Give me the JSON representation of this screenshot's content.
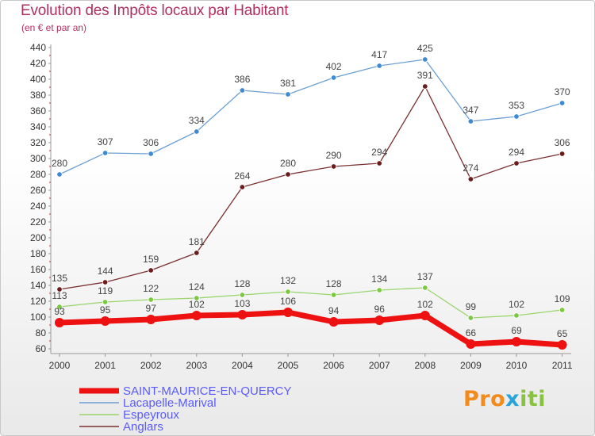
{
  "header": {
    "title": "Evolution des Impôts locaux par Habitant",
    "subtitle": "(en € et par an)"
  },
  "logo": {
    "text": "Proxiti",
    "parts": [
      "Pro",
      "x",
      "iti"
    ]
  },
  "colors": {
    "SAINT-MAURICE-EN-QUERCY": "#ee1111",
    "Lacapelle-Marival": "#6c9fd3",
    "Espeyroux": "#9ad56d",
    "Anglars": "#7a3030"
  },
  "chart_data": {
    "type": "line",
    "title": "Evolution des Impôts locaux par Habitant",
    "subtitle": "(en € et par an)",
    "x": [
      "2000",
      "2001",
      "2002",
      "2003",
      "2004",
      "2005",
      "2006",
      "2007",
      "2008",
      "2009",
      "2010",
      "2011"
    ],
    "yticks": [
      60,
      80,
      100,
      120,
      140,
      160,
      180,
      200,
      220,
      240,
      260,
      280,
      300,
      320,
      340,
      360,
      380,
      400,
      420,
      440
    ],
    "ylim": [
      60,
      440
    ],
    "grid": false,
    "legend": "bottom",
    "series": [
      {
        "name": "SAINT-MAURICE-EN-QUERCY",
        "values": [
          93,
          95,
          97,
          102,
          103,
          106,
          94,
          96,
          102,
          66,
          69,
          65
        ],
        "color": "#ee1111",
        "thick": true
      },
      {
        "name": "Lacapelle-Marival",
        "values": [
          280,
          307,
          306,
          334,
          386,
          381,
          402,
          417,
          425,
          347,
          353,
          370
        ],
        "color": "#6c9fd3",
        "marker": "#3f8ad0"
      },
      {
        "name": "Espeyroux",
        "values": [
          113,
          119,
          122,
          124,
          128,
          132,
          128,
          134,
          137,
          99,
          102,
          109
        ],
        "color": "#9ad56d",
        "marker": "#7cc843"
      },
      {
        "name": "Anglars",
        "values": [
          135,
          144,
          159,
          181,
          264,
          280,
          290,
          294,
          391,
          274,
          294,
          306
        ],
        "color": "#7a3030",
        "marker": "#6b1c1c"
      }
    ]
  }
}
